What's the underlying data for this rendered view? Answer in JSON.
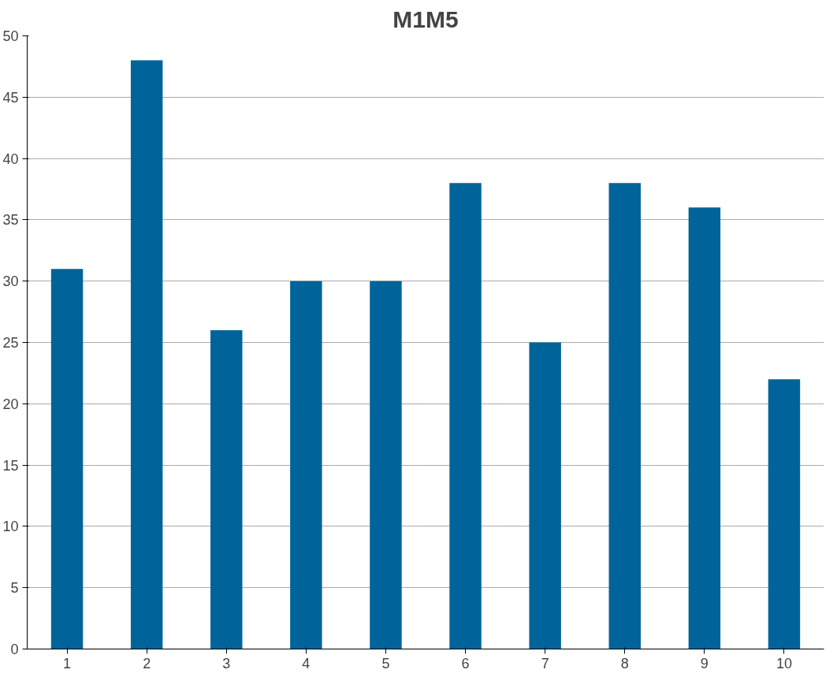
{
  "chart_data": {
    "type": "bar",
    "title": "M1M5",
    "categories": [
      "1",
      "2",
      "3",
      "4",
      "5",
      "6",
      "7",
      "8",
      "9",
      "10"
    ],
    "values": [
      31,
      48,
      26,
      30,
      30,
      38,
      25,
      38,
      36,
      22
    ],
    "color": "#00649a",
    "ylim": [
      0,
      50
    ],
    "yticks": [
      0,
      5,
      10,
      15,
      20,
      25,
      30,
      35,
      40,
      45,
      50
    ],
    "grid": "y"
  }
}
